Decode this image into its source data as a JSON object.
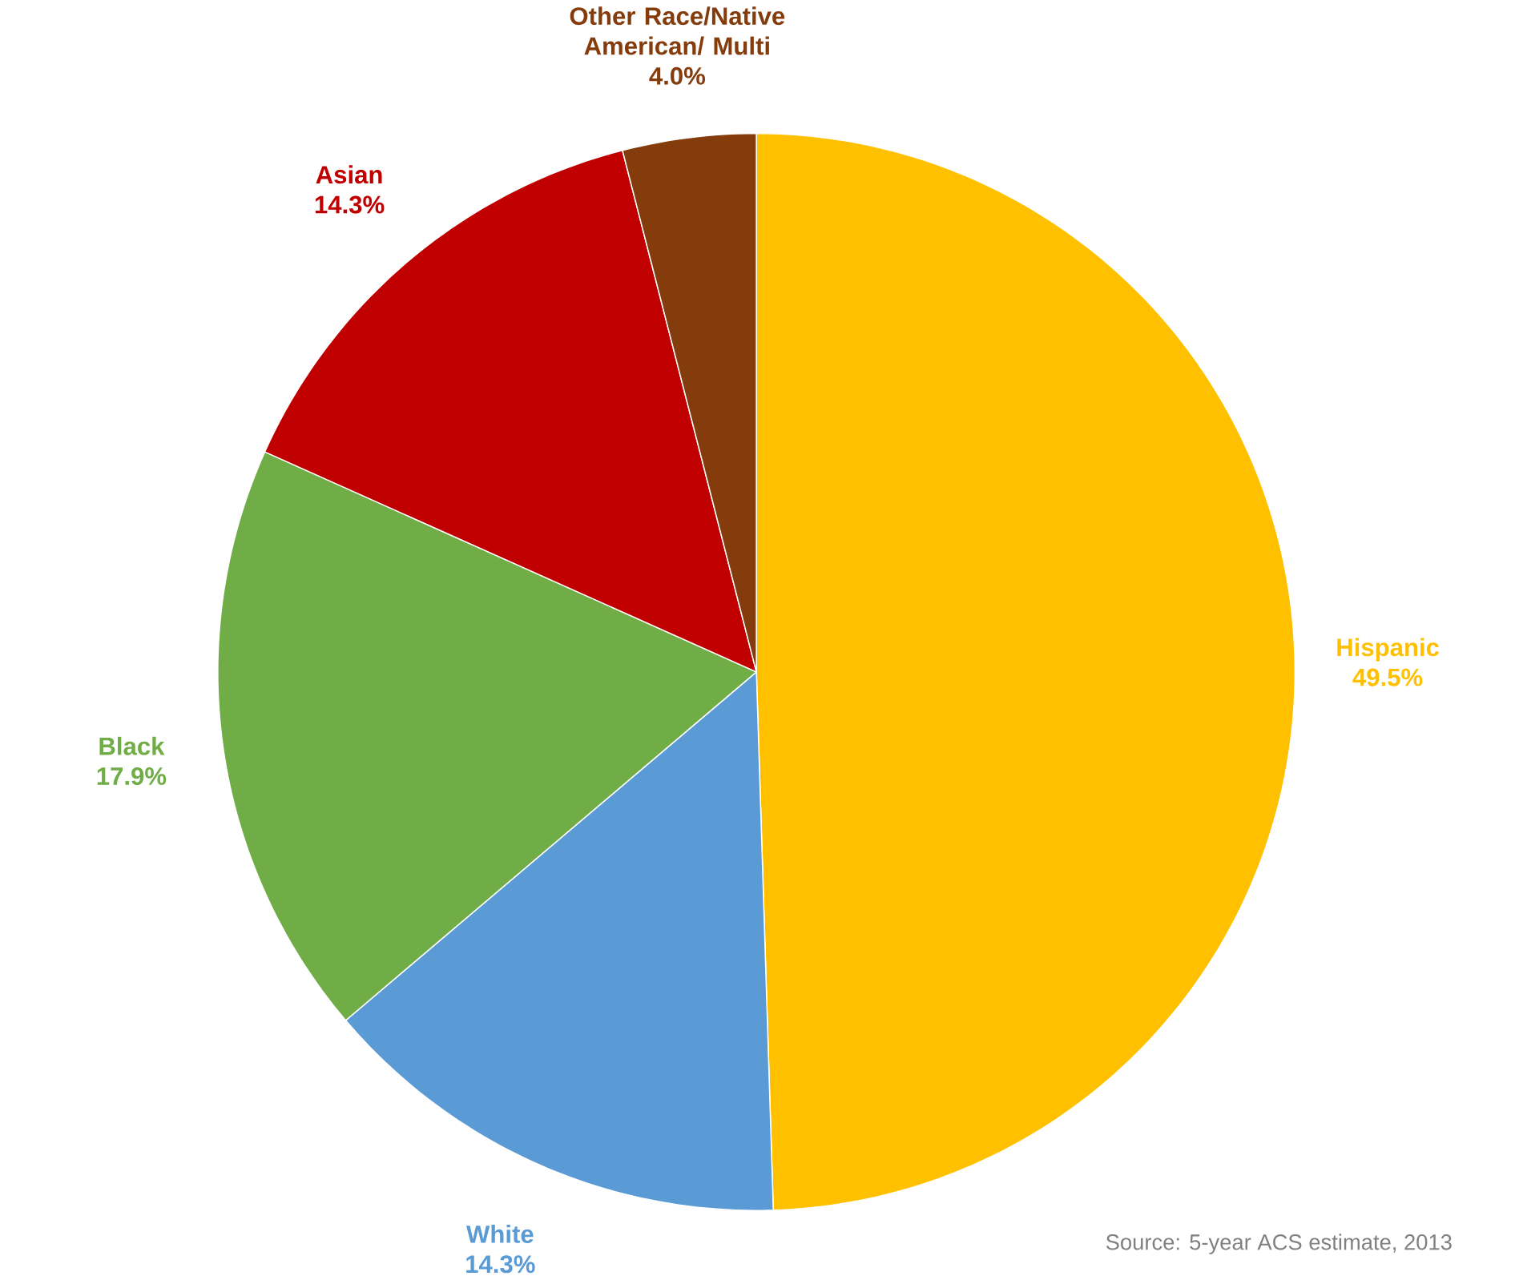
{
  "chart_data": {
    "type": "pie",
    "categories": [
      "Hispanic",
      "White",
      "Black",
      "Asian",
      "Other Race/Native American/ Multi"
    ],
    "values": [
      49.5,
      14.3,
      17.9,
      14.3,
      4.0
    ],
    "colors": [
      "#ffc000",
      "#5b9bd5",
      "#70ad47",
      "#c00000",
      "#843c0c"
    ],
    "value_labels": [
      "49.5%",
      "14.3%",
      "17.9%",
      "14.3%",
      "4.0%"
    ],
    "annotations": [
      "Source: 5-year ACS estimate, 2013"
    ]
  }
}
